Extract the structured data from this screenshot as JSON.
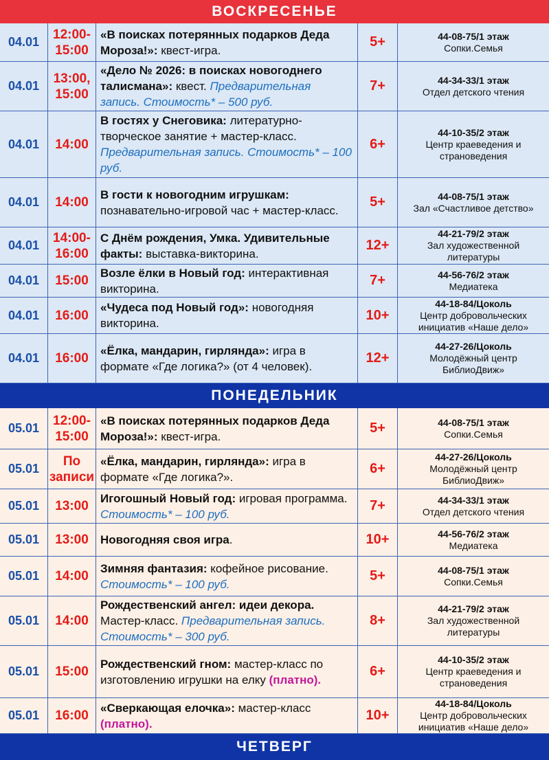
{
  "sections": [
    {
      "day": "ВОСКРЕСЕНЬЕ",
      "header_color": "#e8323c",
      "row_color": "#dce8f5",
      "rows": [
        {
          "date": "04.01",
          "time": "12:00-15:00",
          "event": [
            {
              "text": "«В поисках потерянных подарков Деда Мороза!»:",
              "style": "bold"
            },
            {
              "text": " квест-игра.",
              "style": "normal"
            }
          ],
          "age": "5+",
          "contact": "44-08-75/1 этаж",
          "place": "Сопки.Семья"
        },
        {
          "date": "04.01",
          "time": "13:00, 15:00",
          "event": [
            {
              "text": "«Дело № 2026: в поисках новогоднего талисмана»:",
              "style": "bold"
            },
            {
              "text": " квест. ",
              "style": "normal"
            },
            {
              "text": "Предварительная запись. Стоимость* – 500 руб.",
              "style": "note"
            }
          ],
          "age": "7+",
          "contact": "44-34-33/1 этаж",
          "place": "Отдел детского чтения"
        },
        {
          "date": "04.01",
          "time": "14:00",
          "event": [
            {
              "text": "В гостях у Снеговика:",
              "style": "bold"
            },
            {
              "text": " литературно-творческое занятие + мастер-класс. ",
              "style": "normal"
            },
            {
              "text": "Предварительная запись. Стоимость* – 100 руб.",
              "style": "note"
            }
          ],
          "age": "6+",
          "contact": "44-10-35/2 этаж",
          "place": "Центр краеведения и страноведения"
        },
        {
          "date": "04.01",
          "time": "14:00",
          "event": [
            {
              "text": "В гости к новогодним игрушкам:",
              "style": "bold"
            },
            {
              "text": " познавательно-игровой час + мастер-класс.",
              "style": "normal"
            }
          ],
          "age": "5+",
          "contact": "44-08-75/1 этаж",
          "place": "Зал «Счастливое детство»"
        },
        {
          "date": "04.01",
          "time": "14:00-16:00",
          "event": [
            {
              "text": "С Днём рождения, Умка. Удивительные факты:",
              "style": "bold"
            },
            {
              "text": " выставка-викторина.",
              "style": "normal"
            }
          ],
          "age": "12+",
          "contact": "44-21-79/2 этаж",
          "place": "Зал художественной литературы"
        },
        {
          "date": "04.01",
          "time": "15:00",
          "event": [
            {
              "text": "Возле ёлки в Новый год:",
              "style": "bold"
            },
            {
              "text": " интерактивная викторина.",
              "style": "normal"
            }
          ],
          "age": "7+",
          "contact": "44-56-76/2 этаж",
          "place": "Медиатека"
        },
        {
          "date": "04.01",
          "time": "16:00",
          "event": [
            {
              "text": "«Чудеса под Новый год»:",
              "style": "bold"
            },
            {
              "text": " новогодняя викторина.",
              "style": "normal"
            }
          ],
          "age": "10+",
          "contact": "44-18-84/Цоколь",
          "place": "Центр добровольческих инициатив «Наше дело»"
        },
        {
          "date": "04.01",
          "time": "16:00",
          "event": [
            {
              "text": "«Ёлка, мандарин, гирлянда»:",
              "style": "bold"
            },
            {
              "text": " игра в формате «Где логика?» (от 4 человек).",
              "style": "normal"
            }
          ],
          "age": "12+",
          "contact": "44-27-26/Цоколь",
          "place": "Молодёжный центр БиблиоДвиж»"
        }
      ]
    },
    {
      "day": "ПОНЕДЕЛЬНИК",
      "header_color": "#1034a6",
      "row_color": "#fdf0e6",
      "rows": [
        {
          "date": "05.01",
          "time": "12:00-15:00",
          "event": [
            {
              "text": "«В поисках потерянных подарков Деда Мороза!»:",
              "style": "bold"
            },
            {
              "text": " квест-игра.",
              "style": "normal"
            }
          ],
          "age": "5+",
          "contact": "44-08-75/1 этаж",
          "place": "Сопки.Семья"
        },
        {
          "date": "05.01",
          "time": "По записи",
          "event": [
            {
              "text": "«Ёлка, мандарин, гирлянда»:",
              "style": "bold"
            },
            {
              "text": " игра в формате «Где логика?».",
              "style": "normal"
            }
          ],
          "age": "6+",
          "contact": "44-27-26/Цоколь",
          "place": "Молодёжный центр БиблиоДвиж»"
        },
        {
          "date": "05.01",
          "time": "13:00",
          "event": [
            {
              "text": "Игогошный Новый год:",
              "style": "bold"
            },
            {
              "text": " игровая программа. ",
              "style": "normal"
            },
            {
              "text": "Стоимость* – 100 руб.",
              "style": "note"
            }
          ],
          "age": "7+",
          "contact": "44-34-33/1 этаж",
          "place": "Отдел детского чтения"
        },
        {
          "date": "05.01",
          "time": "13:00",
          "event": [
            {
              "text": "Новогодняя своя игра",
              "style": "bold"
            },
            {
              "text": ".",
              "style": "normal"
            }
          ],
          "age": "10+",
          "contact": "44-56-76/2 этаж",
          "place": "Медиатека"
        },
        {
          "date": "05.01",
          "time": "14:00",
          "event": [
            {
              "text": "Зимняя фантазия:",
              "style": "bold"
            },
            {
              "text": " кофейное рисование. ",
              "style": "normal"
            },
            {
              "text": "Стоимость* – 100 руб.",
              "style": "note"
            }
          ],
          "age": "5+",
          "contact": "44-08-75/1 этаж",
          "place": "Сопки.Семья"
        },
        {
          "date": "05.01",
          "time": "14:00",
          "event": [
            {
              "text": "Рождественский ангел: идеи декора.",
              "style": "bold"
            },
            {
              "text": " Мастер-класс. ",
              "style": "normal"
            },
            {
              "text": "Предварительная запись. Стоимость* – 300 руб.",
              "style": "note"
            }
          ],
          "age": "8+",
          "contact": "44-21-79/2 этаж",
          "place": "Зал художественной литературы"
        },
        {
          "date": "05.01",
          "time": "15:00",
          "event": [
            {
              "text": "Рождественский гном:",
              "style": "bold"
            },
            {
              "text": " мастер-класс по изготовлению игрушки на елку ",
              "style": "normal"
            },
            {
              "text": "(платно).",
              "style": "paid"
            }
          ],
          "age": "6+",
          "contact": "44-10-35/2 этаж",
          "place": "Центр краеведения и страноведения"
        },
        {
          "date": "05.01",
          "time": "16:00",
          "event": [
            {
              "text": "«Сверкающая елочка»:",
              "style": "bold"
            },
            {
              "text": " мастер-класс ",
              "style": "normal"
            },
            {
              "text": "(платно).",
              "style": "paid"
            }
          ],
          "age": "10+",
          "contact": "44-18-84/Цоколь",
          "place": "Центр добровольческих инициатив «Наше дело»"
        }
      ]
    },
    {
      "day": "ЧЕТВЕРГ",
      "header_color": "#1034a6",
      "row_color": "#fdf0e6",
      "rows": []
    }
  ]
}
